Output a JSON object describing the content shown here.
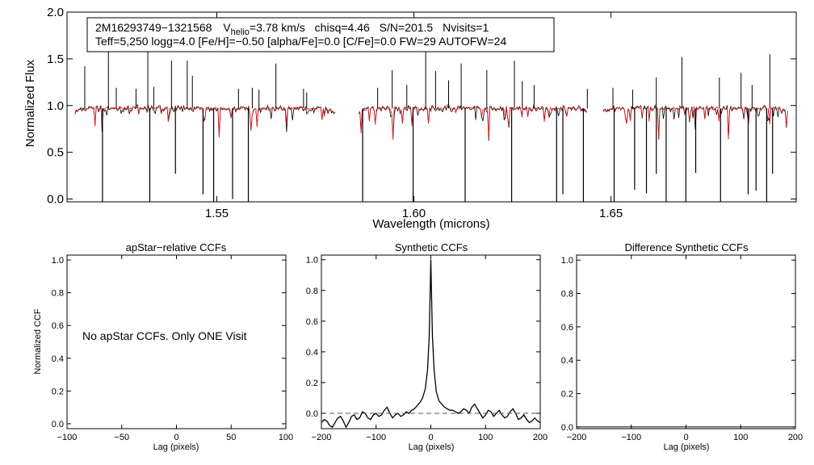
{
  "chart_data": [
    {
      "type": "line",
      "title": "",
      "xlabel": "Wavelength (microns)",
      "ylabel": "Normalized Flux",
      "xlim": [
        1.512,
        1.697
      ],
      "ylim": [
        -0.03,
        2.0
      ],
      "xticks": [
        1.55,
        1.6,
        1.65
      ],
      "xtick_labels": [
        "1.55",
        "1.60",
        "1.65"
      ],
      "yticks": [
        0.0,
        0.5,
        1.0,
        1.5,
        2.0
      ],
      "ytick_labels": [
        "0.0",
        "0.5",
        "1.0",
        "1.5",
        "2.0"
      ],
      "info_box": {
        "star_id": "2M16293749−1321568",
        "vhelio_prefix": "V",
        "vhelio_sub": "helio",
        "vhelio_value": "=3.78 km/s",
        "chisq": "chisq=4.46",
        "sn": "S/N=201.5",
        "nvisits": "Nvisits=1",
        "line2": "Teff=5,250 logg=4.0 [Fe/H]=−0.50 [alpha/Fe]=0.0 [C/Fe]=0.0 FW=29 AUTOFW=24"
      },
      "chips": [
        [
          1.514,
          1.58
        ],
        [
          1.586,
          1.644
        ],
        [
          1.648,
          1.695
        ]
      ],
      "series": [
        {
          "name": "observed spectrum",
          "color": "#000000",
          "continuum": 0.97
        },
        {
          "name": "model spectrum",
          "color": "#e8141e",
          "continuum": 0.97
        }
      ],
      "emission_spikes": [
        [
          1.5165,
          1.42
        ],
        [
          1.5225,
          1.58
        ],
        [
          1.5245,
          1.19
        ],
        [
          1.5295,
          1.18
        ],
        [
          1.5325,
          1.62
        ],
        [
          1.534,
          1.2
        ],
        [
          1.5385,
          1.48
        ],
        [
          1.5425,
          1.48
        ],
        [
          1.5438,
          1.32
        ],
        [
          1.5555,
          1.18
        ],
        [
          1.559,
          1.19
        ],
        [
          1.5607,
          1.17
        ],
        [
          1.565,
          1.45
        ],
        [
          1.572,
          1.18
        ],
        [
          1.5728,
          1.14
        ],
        [
          1.5908,
          1.19
        ],
        [
          1.5945,
          1.38
        ],
        [
          1.5982,
          1.22
        ],
        [
          1.603,
          1.72
        ],
        [
          1.6055,
          1.37
        ],
        [
          1.6088,
          1.27
        ],
        [
          1.612,
          1.45
        ],
        [
          1.6185,
          1.38
        ],
        [
          1.6255,
          1.48
        ],
        [
          1.6275,
          1.26
        ],
        [
          1.6305,
          1.22
        ],
        [
          1.644,
          1.18
        ],
        [
          1.6505,
          1.19
        ],
        [
          1.6555,
          1.17
        ],
        [
          1.6615,
          1.3
        ],
        [
          1.668,
          1.52
        ],
        [
          1.6775,
          1.3
        ],
        [
          1.683,
          1.35
        ],
        [
          1.6858,
          1.22
        ],
        [
          1.6903,
          1.55
        ]
      ],
      "absorption_spikes": [
        [
          1.521,
          -0.03
        ],
        [
          1.533,
          -0.03
        ],
        [
          1.5395,
          0.27
        ],
        [
          1.5465,
          0.05
        ],
        [
          1.5492,
          -0.03
        ],
        [
          1.554,
          0.0
        ],
        [
          1.558,
          -0.03
        ],
        [
          1.587,
          -0.03
        ],
        [
          1.5998,
          -0.03
        ],
        [
          1.613,
          -0.03
        ],
        [
          1.6248,
          -0.03
        ],
        [
          1.6362,
          -0.03
        ],
        [
          1.6378,
          0.05
        ],
        [
          1.643,
          -0.03
        ],
        [
          1.6508,
          -0.03
        ],
        [
          1.656,
          0.1
        ],
        [
          1.659,
          0.06
        ],
        [
          1.6615,
          0.27
        ],
        [
          1.664,
          -0.03
        ],
        [
          1.669,
          -0.03
        ],
        [
          1.6715,
          0.28
        ],
        [
          1.6778,
          -0.03
        ],
        [
          1.6848,
          0.05
        ],
        [
          1.6868,
          0.09
        ],
        [
          1.6895,
          -0.03
        ],
        [
          1.691,
          0.27
        ]
      ]
    },
    {
      "type": "line",
      "title": "apStar−relative CCFs",
      "xlabel": "Lag (pixels)",
      "ylabel": "Normalized CCF",
      "xlim": [
        -100,
        100
      ],
      "ylim": [
        -0.03,
        1.03
      ],
      "xticks": [
        -100,
        -50,
        0,
        50,
        100
      ],
      "xtick_labels": [
        "−100",
        "−50",
        "0",
        "50",
        "100"
      ],
      "yticks": [
        0.0,
        0.2,
        0.4,
        0.6,
        0.8,
        1.0
      ],
      "ytick_labels": [
        "0.0",
        "0.2",
        "0.4",
        "0.6",
        "0.8",
        "1.0"
      ],
      "annotation": "No apStar CCFs.  Only ONE Visit",
      "series": []
    },
    {
      "type": "line",
      "title": "Synthetic CCFs",
      "xlabel": "Lag (pixels)",
      "ylabel": "",
      "xlim": [
        -200,
        200
      ],
      "ylim": [
        -0.1,
        1.03
      ],
      "xticks": [
        -200,
        -100,
        0,
        100,
        200
      ],
      "xtick_labels": [
        "−200",
        "−100",
        "0",
        "100",
        "200"
      ],
      "yticks": [
        0.0,
        0.2,
        0.4,
        0.6,
        0.8,
        1.0
      ],
      "ytick_labels": [
        "0.0",
        "0.2",
        "0.4",
        "0.6",
        "0.8",
        "1.0"
      ],
      "series": [
        {
          "name": "CCF",
          "style": "solid",
          "x": [
            -200,
            -195,
            -190,
            -185,
            -180,
            -175,
            -170,
            -165,
            -160,
            -155,
            -150,
            -145,
            -140,
            -135,
            -130,
            -125,
            -120,
            -115,
            -110,
            -105,
            -100,
            -95,
            -90,
            -85,
            -80,
            -75,
            -70,
            -65,
            -60,
            -55,
            -50,
            -45,
            -40,
            -35,
            -30,
            -25,
            -20,
            -15,
            -10,
            -6,
            -3,
            -1,
            0,
            1,
            3,
            6,
            10,
            15,
            20,
            25,
            30,
            35,
            40,
            45,
            50,
            55,
            60,
            65,
            70,
            75,
            80,
            85,
            90,
            95,
            100,
            105,
            110,
            115,
            120,
            125,
            130,
            135,
            140,
            145,
            150,
            155,
            160,
            165,
            170,
            175,
            180,
            185,
            190,
            195,
            200
          ],
          "y": [
            -0.06,
            -0.04,
            -0.05,
            -0.08,
            -0.09,
            -0.06,
            -0.03,
            -0.02,
            -0.05,
            -0.09,
            -0.06,
            -0.02,
            -0.01,
            -0.04,
            -0.03,
            0.01,
            0.0,
            -0.03,
            -0.04,
            -0.01,
            0.0,
            -0.02,
            -0.01,
            0.02,
            0.04,
            0.0,
            -0.03,
            -0.01,
            0.0,
            -0.02,
            -0.01,
            0.01,
            0.0,
            0.02,
            0.03,
            0.05,
            0.07,
            0.1,
            0.16,
            0.28,
            0.5,
            0.82,
            1.0,
            0.82,
            0.5,
            0.28,
            0.14,
            0.08,
            0.06,
            0.04,
            0.03,
            0.02,
            0.02,
            0.01,
            0.0,
            0.01,
            0.03,
            0.02,
            0.0,
            0.04,
            0.06,
            0.03,
            0.0,
            -0.03,
            -0.01,
            0.02,
            0.01,
            -0.02,
            0.0,
            0.02,
            -0.01,
            -0.03,
            -0.02,
            0.01,
            0.03,
            0.0,
            -0.04,
            -0.03,
            -0.01,
            -0.04,
            -0.06,
            -0.05,
            -0.03,
            -0.05,
            -0.06
          ]
        },
        {
          "name": "zero line",
          "style": "dashed",
          "x": [
            -200,
            200
          ],
          "y": [
            0,
            0
          ]
        }
      ]
    },
    {
      "type": "line",
      "title": "Difference Synthetic CCFs",
      "xlabel": "Lag (pixels)",
      "ylabel": "",
      "xlim": [
        -200,
        200
      ],
      "ylim": [
        -0.01,
        1.03
      ],
      "xticks": [
        -200,
        -100,
        0,
        100,
        200
      ],
      "xtick_labels": [
        "−200",
        "−100",
        "0",
        "100",
        "200"
      ],
      "yticks": [
        0.0,
        0.2,
        0.4,
        0.6,
        0.8,
        1.0
      ],
      "ytick_labels": [
        "0.0",
        "0.2",
        "0.4",
        "0.6",
        "0.8",
        "1.0"
      ],
      "series": []
    }
  ]
}
